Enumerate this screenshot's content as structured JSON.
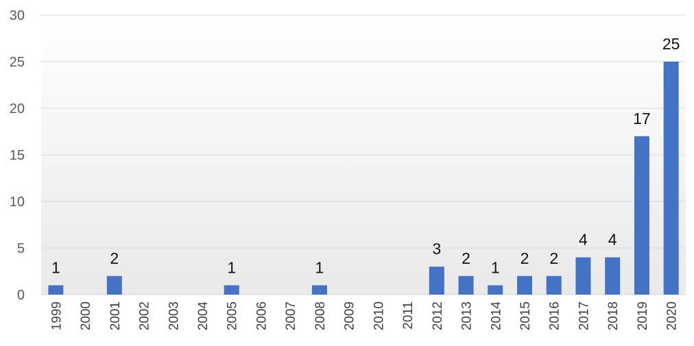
{
  "chart_data": {
    "type": "bar",
    "categories": [
      "1999",
      "2000",
      "2001",
      "2002",
      "2003",
      "2004",
      "2005",
      "2006",
      "2007",
      "2008",
      "2009",
      "2010",
      "2011",
      "2012",
      "2013",
      "2014",
      "2015",
      "2016",
      "2017",
      "2018",
      "2019",
      "2020"
    ],
    "values": [
      1,
      0,
      2,
      0,
      0,
      0,
      1,
      0,
      0,
      1,
      0,
      0,
      0,
      3,
      2,
      1,
      2,
      2,
      4,
      4,
      17,
      25
    ],
    "data_labels": [
      "1",
      "",
      "2",
      "",
      "",
      "",
      "1",
      "",
      "",
      "1",
      "",
      "",
      "",
      "3",
      "2",
      "1",
      "2",
      "2",
      "4",
      "4",
      "17",
      "25"
    ],
    "title": "",
    "xlabel": "",
    "ylabel": "",
    "ylim": [
      0,
      30
    ],
    "yticks": [
      "0",
      "5",
      "10",
      "15",
      "20",
      "25",
      "30"
    ],
    "grid": true,
    "legend": "none",
    "colors": {
      "bar": "#4472c4",
      "background_top": "#ffffff",
      "background_bottom": "#e9e9e9"
    }
  }
}
